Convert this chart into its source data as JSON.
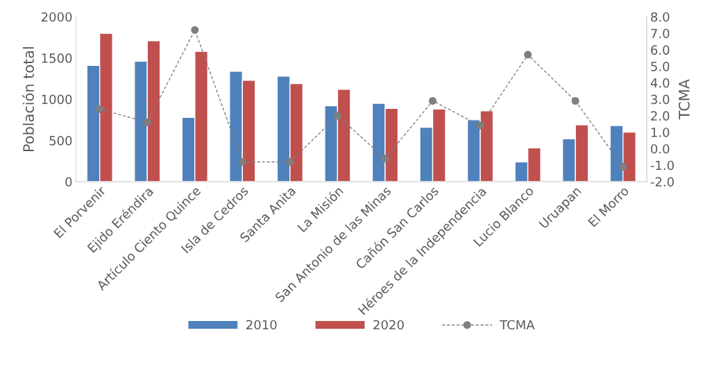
{
  "chart_data": {
    "type": "bar",
    "ylabel": "Población total",
    "y2label": "TCMA",
    "categories": [
      "El Porvenir",
      "Ejido Eréndira",
      "Artículo Ciento Quince",
      "Isla de Cedros",
      "Santa Anita",
      "La Misión",
      "San Antonio de las Minas",
      "Cañón San Carlos",
      "Héroes de la Independencia",
      "Lucio Blanco",
      "Uruapan",
      "El Morro"
    ],
    "series": [
      {
        "name": "2010",
        "color": "#4f81bd",
        "values": [
          1410,
          1460,
          780,
          1340,
          1280,
          920,
          950,
          660,
          750,
          240,
          520,
          680
        ]
      },
      {
        "name": "2020",
        "color": "#c0504d",
        "values": [
          1800,
          1710,
          1580,
          1230,
          1190,
          1120,
          890,
          880,
          860,
          410,
          690,
          600
        ]
      },
      {
        "name": "TCMA",
        "type": "line",
        "axis": "y2",
        "color": "#7f7f7f",
        "marker": "circle",
        "line_style": "dashed",
        "values": [
          2.4,
          1.6,
          7.2,
          -0.8,
          -0.8,
          2.0,
          -0.6,
          2.9,
          1.4,
          5.7,
          2.9,
          -1.1
        ]
      }
    ],
    "ylim": [
      0,
      2000
    ],
    "yticks": [
      0,
      500,
      1000,
      1500,
      2000
    ],
    "y2lim": [
      -2,
      8
    ],
    "y2ticks": [
      {
        "value": -2,
        "label": "-2.0"
      },
      {
        "value": -1,
        "label": "-1.0"
      },
      {
        "value": 0,
        "label": "0.0"
      },
      {
        "value": 1,
        "label": "1.0"
      },
      {
        "value": 2,
        "label": "2.0"
      },
      {
        "value": 3,
        "label": "3.0"
      },
      {
        "value": 4,
        "label": "4.0"
      },
      {
        "value": 5,
        "label": "5.0"
      },
      {
        "value": 6,
        "label": "6.0"
      },
      {
        "value": 7,
        "label": "7.0"
      },
      {
        "value": 8,
        "label": "8.0"
      }
    ],
    "grid": false,
    "legend": "bottom"
  }
}
